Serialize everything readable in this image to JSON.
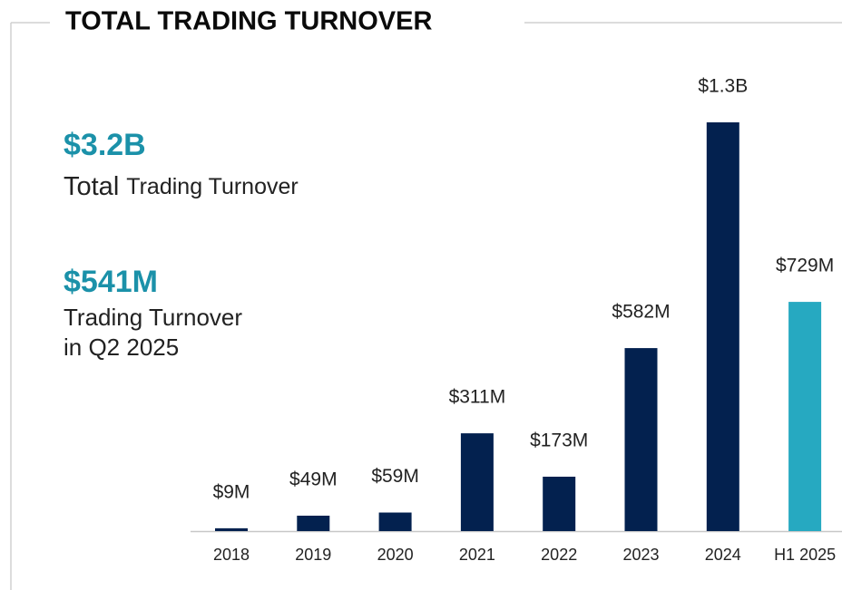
{
  "title": "TOTAL TRADING TURNOVER",
  "stats": [
    {
      "value": "$3.2B",
      "label": [
        "Total",
        "Trading Turnover"
      ]
    },
    {
      "value": "$541M",
      "label": [
        "Trading Turnover",
        "in Q2 2025"
      ]
    }
  ],
  "chart_data": {
    "type": "bar",
    "categories": [
      "2018",
      "2019",
      "2020",
      "2021",
      "2022",
      "2023",
      "2024",
      "H1 2025"
    ],
    "values": [
      9,
      49,
      59,
      311,
      173,
      582,
      1300,
      729
    ],
    "value_labels": [
      "$9M",
      "$49M",
      "$59M",
      "$311M",
      "$173M",
      "$582M",
      "$1.3B",
      "$729M"
    ],
    "colors": [
      "#03214f",
      "#03214f",
      "#03214f",
      "#03214f",
      "#03214f",
      "#03214f",
      "#03214f",
      "#26a9c1"
    ],
    "ylim": [
      0,
      1300
    ]
  }
}
